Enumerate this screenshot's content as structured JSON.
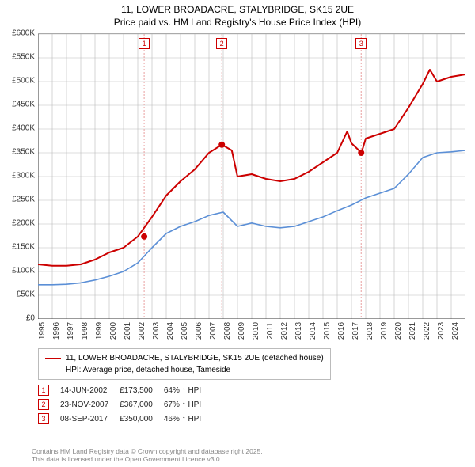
{
  "title_line1": "11, LOWER BROADACRE, STALYBRIDGE, SK15 2UE",
  "title_line2": "Price paid vs. HM Land Registry's House Price Index (HPI)",
  "chart": {
    "type": "line",
    "background_color": "#ffffff",
    "grid_color": "#bbbbbb",
    "x_years": [
      1995,
      1996,
      1997,
      1998,
      1999,
      2000,
      2001,
      2002,
      2003,
      2004,
      2005,
      2006,
      2007,
      2008,
      2009,
      2010,
      2011,
      2012,
      2013,
      2014,
      2015,
      2016,
      2017,
      2018,
      2019,
      2020,
      2021,
      2022,
      2023,
      2024
    ],
    "y_ticks": [
      0,
      50000,
      100000,
      150000,
      200000,
      250000,
      300000,
      350000,
      400000,
      450000,
      500000,
      550000,
      600000
    ],
    "y_tick_labels": [
      "£0",
      "£50K",
      "£100K",
      "£150K",
      "£200K",
      "£250K",
      "£300K",
      "£350K",
      "£400K",
      "£450K",
      "£500K",
      "£550K",
      "£600K"
    ],
    "ylim": [
      0,
      600000
    ],
    "xlim": [
      1995,
      2025
    ],
    "series": [
      {
        "name": "11, LOWER BROADACRE, STALYBRIDGE, SK15 2UE (detached house)",
        "color": "#cc0000",
        "line_width": 2,
        "data": [
          [
            1995,
            115000
          ],
          [
            1996,
            112000
          ],
          [
            1997,
            112000
          ],
          [
            1998,
            115000
          ],
          [
            1999,
            125000
          ],
          [
            2000,
            140000
          ],
          [
            2001,
            150000
          ],
          [
            2002,
            173500
          ],
          [
            2003,
            215000
          ],
          [
            2004,
            260000
          ],
          [
            2005,
            290000
          ],
          [
            2006,
            315000
          ],
          [
            2007,
            350000
          ],
          [
            2007.9,
            367000
          ],
          [
            2008.6,
            355000
          ],
          [
            2009,
            300000
          ],
          [
            2010,
            305000
          ],
          [
            2011,
            295000
          ],
          [
            2012,
            290000
          ],
          [
            2013,
            295000
          ],
          [
            2014,
            310000
          ],
          [
            2015,
            330000
          ],
          [
            2016,
            350000
          ],
          [
            2016.7,
            395000
          ],
          [
            2017,
            370000
          ],
          [
            2017.7,
            350000
          ],
          [
            2018,
            380000
          ],
          [
            2019,
            390000
          ],
          [
            2020,
            400000
          ],
          [
            2021,
            445000
          ],
          [
            2022,
            495000
          ],
          [
            2022.5,
            525000
          ],
          [
            2023,
            500000
          ],
          [
            2024,
            510000
          ],
          [
            2025,
            515000
          ]
        ]
      },
      {
        "name": "HPI: Average price, detached house, Tameside",
        "color": "#5b8fd6",
        "line_width": 1.6,
        "data": [
          [
            1995,
            72000
          ],
          [
            1996,
            72000
          ],
          [
            1997,
            73000
          ],
          [
            1998,
            76000
          ],
          [
            1999,
            82000
          ],
          [
            2000,
            90000
          ],
          [
            2001,
            100000
          ],
          [
            2002,
            118000
          ],
          [
            2003,
            150000
          ],
          [
            2004,
            180000
          ],
          [
            2005,
            195000
          ],
          [
            2006,
            205000
          ],
          [
            2007,
            218000
          ],
          [
            2008,
            225000
          ],
          [
            2009,
            195000
          ],
          [
            2010,
            202000
          ],
          [
            2011,
            195000
          ],
          [
            2012,
            192000
          ],
          [
            2013,
            195000
          ],
          [
            2014,
            205000
          ],
          [
            2015,
            215000
          ],
          [
            2016,
            228000
          ],
          [
            2017,
            240000
          ],
          [
            2018,
            255000
          ],
          [
            2019,
            265000
          ],
          [
            2020,
            275000
          ],
          [
            2021,
            305000
          ],
          [
            2022,
            340000
          ],
          [
            2023,
            350000
          ],
          [
            2024,
            352000
          ],
          [
            2025,
            355000
          ]
        ]
      }
    ],
    "event_markers": [
      {
        "n": "1",
        "x": 2002.45,
        "color": "#cc0000",
        "dot_y": 173500
      },
      {
        "n": "2",
        "x": 2007.9,
        "color": "#cc0000",
        "dot_y": 367000
      },
      {
        "n": "3",
        "x": 2017.68,
        "color": "#cc0000",
        "dot_y": 350000
      }
    ],
    "event_line_color": "#e8a0a0",
    "event_dot_radius": 4
  },
  "legend_fontsize": 10,
  "events_table": {
    "rows": [
      {
        "n": "1",
        "date": "14-JUN-2002",
        "price": "£173,500",
        "delta": "64% ↑ HPI"
      },
      {
        "n": "2",
        "date": "23-NOV-2007",
        "price": "£367,000",
        "delta": "67% ↑ HPI"
      },
      {
        "n": "3",
        "date": "08-SEP-2017",
        "price": "£350,000",
        "delta": "46% ↑ HPI"
      }
    ]
  },
  "footer_line1": "Contains HM Land Registry data © Crown copyright and database right 2025.",
  "footer_line2": "This data is licensed under the Open Government Licence v3.0."
}
